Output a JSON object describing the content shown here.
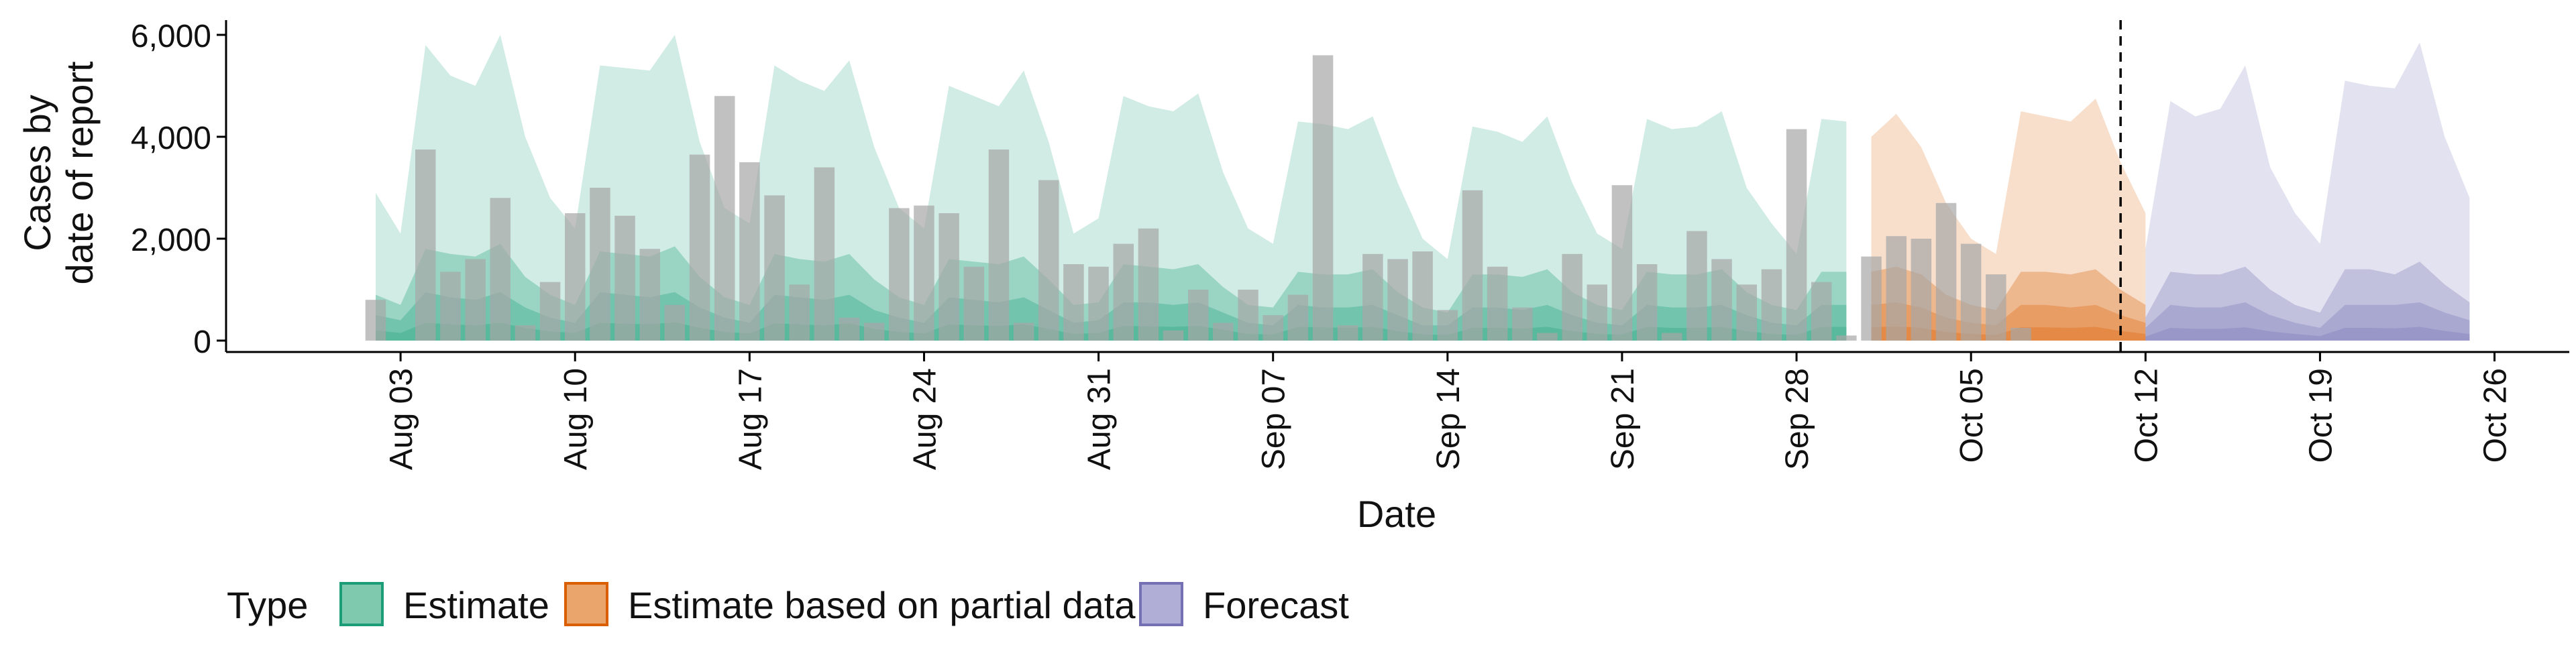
{
  "chart_data": {
    "type": "area",
    "xlabel": "Date",
    "ylabel_lines": [
      "Cases by",
      "date of report"
    ],
    "ylim": [
      0,
      6000
    ],
    "yticks": [
      0,
      2000,
      4000,
      6000
    ],
    "ytick_labels": [
      "0",
      "2,000",
      "4,000",
      "6,000"
    ],
    "xticks": [
      "2020-08-03",
      "2020-08-10",
      "2020-08-17",
      "2020-08-24",
      "2020-08-31",
      "2020-09-07",
      "2020-09-14",
      "2020-09-21",
      "2020-09-28",
      "2020-10-05",
      "2020-10-12",
      "2020-10-19",
      "2020-10-26"
    ],
    "xtick_labels": [
      "Aug 03",
      "Aug 10",
      "Aug 17",
      "Aug 24",
      "Aug 31",
      "Sep 07",
      "Sep 14",
      "Sep 21",
      "Sep 28",
      "Oct 05",
      "Oct 12",
      "Oct 19",
      "Oct 26"
    ],
    "xlim": [
      "2020-07-27",
      "2020-10-29"
    ],
    "forecast_line_date": "2020-10-11",
    "legend": {
      "position": "bottom-left",
      "title": "Type",
      "entries": [
        {
          "label": "Estimate",
          "fill": "#7fc9ae",
          "stroke": "#1b9e77"
        },
        {
          "label": "Estimate based on partial data",
          "fill": "#eaa56c",
          "stroke": "#d95f02"
        },
        {
          "label": "Forecast",
          "fill": "#b0aed6",
          "stroke": "#7570b3"
        }
      ]
    },
    "colors": {
      "estimate": "#1b9e77",
      "partial": "#d95f02",
      "forecast": "#7570b3",
      "bars": "#a6a6a6"
    },
    "series": [
      {
        "name": "Estimate",
        "start": "2020-08-02",
        "upper90": [
          2900,
          2100,
          5800,
          5200,
          5000,
          6000,
          4000,
          2800,
          2200,
          5400,
          5350,
          5300,
          6000,
          3900,
          2600,
          2300,
          5400,
          5100,
          4900,
          5500,
          3800,
          2600,
          2200,
          5000,
          4800,
          4600,
          5300,
          3900,
          2100,
          2400,
          4800,
          4600,
          4500,
          4850,
          3300,
          2200,
          1900,
          4300,
          4250,
          4150,
          4400,
          3100,
          2000,
          1600,
          4200,
          4100,
          3900,
          4400,
          3100,
          2100,
          1800,
          4350,
          4150,
          4200,
          4500,
          3000,
          2300,
          1700,
          4350,
          4300
        ],
        "upper50": [
          900,
          700,
          1800,
          1700,
          1650,
          1900,
          1250,
          900,
          700,
          1750,
          1700,
          1650,
          1850,
          1250,
          850,
          700,
          1700,
          1600,
          1550,
          1700,
          1200,
          850,
          700,
          1600,
          1550,
          1500,
          1650,
          1200,
          700,
          750,
          1500,
          1450,
          1400,
          1500,
          1050,
          700,
          650,
          1350,
          1300,
          1300,
          1400,
          950,
          650,
          550,
          1300,
          1300,
          1250,
          1400,
          950,
          700,
          600,
          1350,
          1300,
          1300,
          1400,
          950,
          700,
          600,
          1350,
          1350
        ],
        "median": [
          500,
          400,
          950,
          850,
          800,
          950,
          650,
          450,
          350,
          950,
          900,
          850,
          950,
          650,
          450,
          350,
          900,
          850,
          800,
          900,
          600,
          450,
          350,
          850,
          800,
          750,
          850,
          600,
          350,
          400,
          750,
          750,
          700,
          750,
          550,
          350,
          300,
          700,
          650,
          650,
          700,
          500,
          300,
          300,
          650,
          650,
          600,
          700,
          500,
          350,
          300,
          700,
          650,
          650,
          700,
          500,
          350,
          300,
          700,
          700
        ],
        "upper20": [
          200,
          150,
          350,
          320,
          300,
          350,
          250,
          180,
          150,
          350,
          330,
          320,
          360,
          250,
          170,
          140,
          340,
          320,
          300,
          340,
          230,
          170,
          140,
          320,
          300,
          290,
          320,
          230,
          130,
          150,
          290,
          280,
          270,
          290,
          210,
          130,
          120,
          270,
          260,
          250,
          270,
          190,
          120,
          110,
          250,
          250,
          240,
          270,
          190,
          130,
          120,
          270,
          250,
          250,
          270,
          190,
          130,
          110,
          270,
          270
        ]
      },
      {
        "name": "Estimate based on partial data",
        "start": "2020-10-01",
        "upper90": [
          4000,
          4450,
          3800,
          2700,
          2000,
          1700,
          4500,
          4400,
          4300,
          4750,
          3500,
          2500
        ],
        "upper50": [
          1350,
          1450,
          1300,
          900,
          700,
          600,
          1350,
          1350,
          1300,
          1400,
          1000,
          700
        ],
        "median": [
          700,
          750,
          650,
          450,
          350,
          300,
          700,
          700,
          650,
          700,
          500,
          350
        ],
        "upper20": [
          260,
          280,
          250,
          170,
          130,
          110,
          260,
          260,
          250,
          270,
          190,
          130
        ]
      },
      {
        "name": "Forecast",
        "start": "2020-10-12",
        "upper90": [
          1800,
          4700,
          4400,
          4550,
          5400,
          3400,
          2500,
          1900,
          5100,
          5000,
          4950,
          5850,
          4000,
          2800
        ],
        "upper50": [
          450,
          1350,
          1300,
          1300,
          1450,
          1000,
          700,
          550,
          1400,
          1400,
          1300,
          1550,
          1100,
          750
        ],
        "median": [
          250,
          700,
          650,
          650,
          750,
          500,
          350,
          250,
          700,
          700,
          700,
          750,
          550,
          400
        ],
        "upper20": [
          80,
          250,
          230,
          230,
          260,
          180,
          130,
          90,
          250,
          250,
          240,
          270,
          190,
          130
        ]
      }
    ],
    "reported_cases": {
      "start": "2020-08-02",
      "values": [
        800,
        0,
        3750,
        1350,
        1600,
        2800,
        300,
        1150,
        2500,
        3000,
        2450,
        1800,
        700,
        3650,
        4800,
        3500,
        2850,
        1100,
        3400,
        450,
        350,
        2600,
        2650,
        2500,
        1450,
        3750,
        350,
        3150,
        1500,
        1450,
        1900,
        2200,
        200,
        1000,
        350,
        1000,
        500,
        900,
        5600,
        300,
        1700,
        1600,
        1750,
        600,
        2950,
        1450,
        650,
        150,
        1700,
        1100,
        3050,
        1500,
        150,
        2150,
        1600,
        1100,
        1400,
        4150,
        1150,
        100,
        1650,
        2050,
        2000,
        2700,
        1900,
        1300,
        250
      ]
    }
  }
}
